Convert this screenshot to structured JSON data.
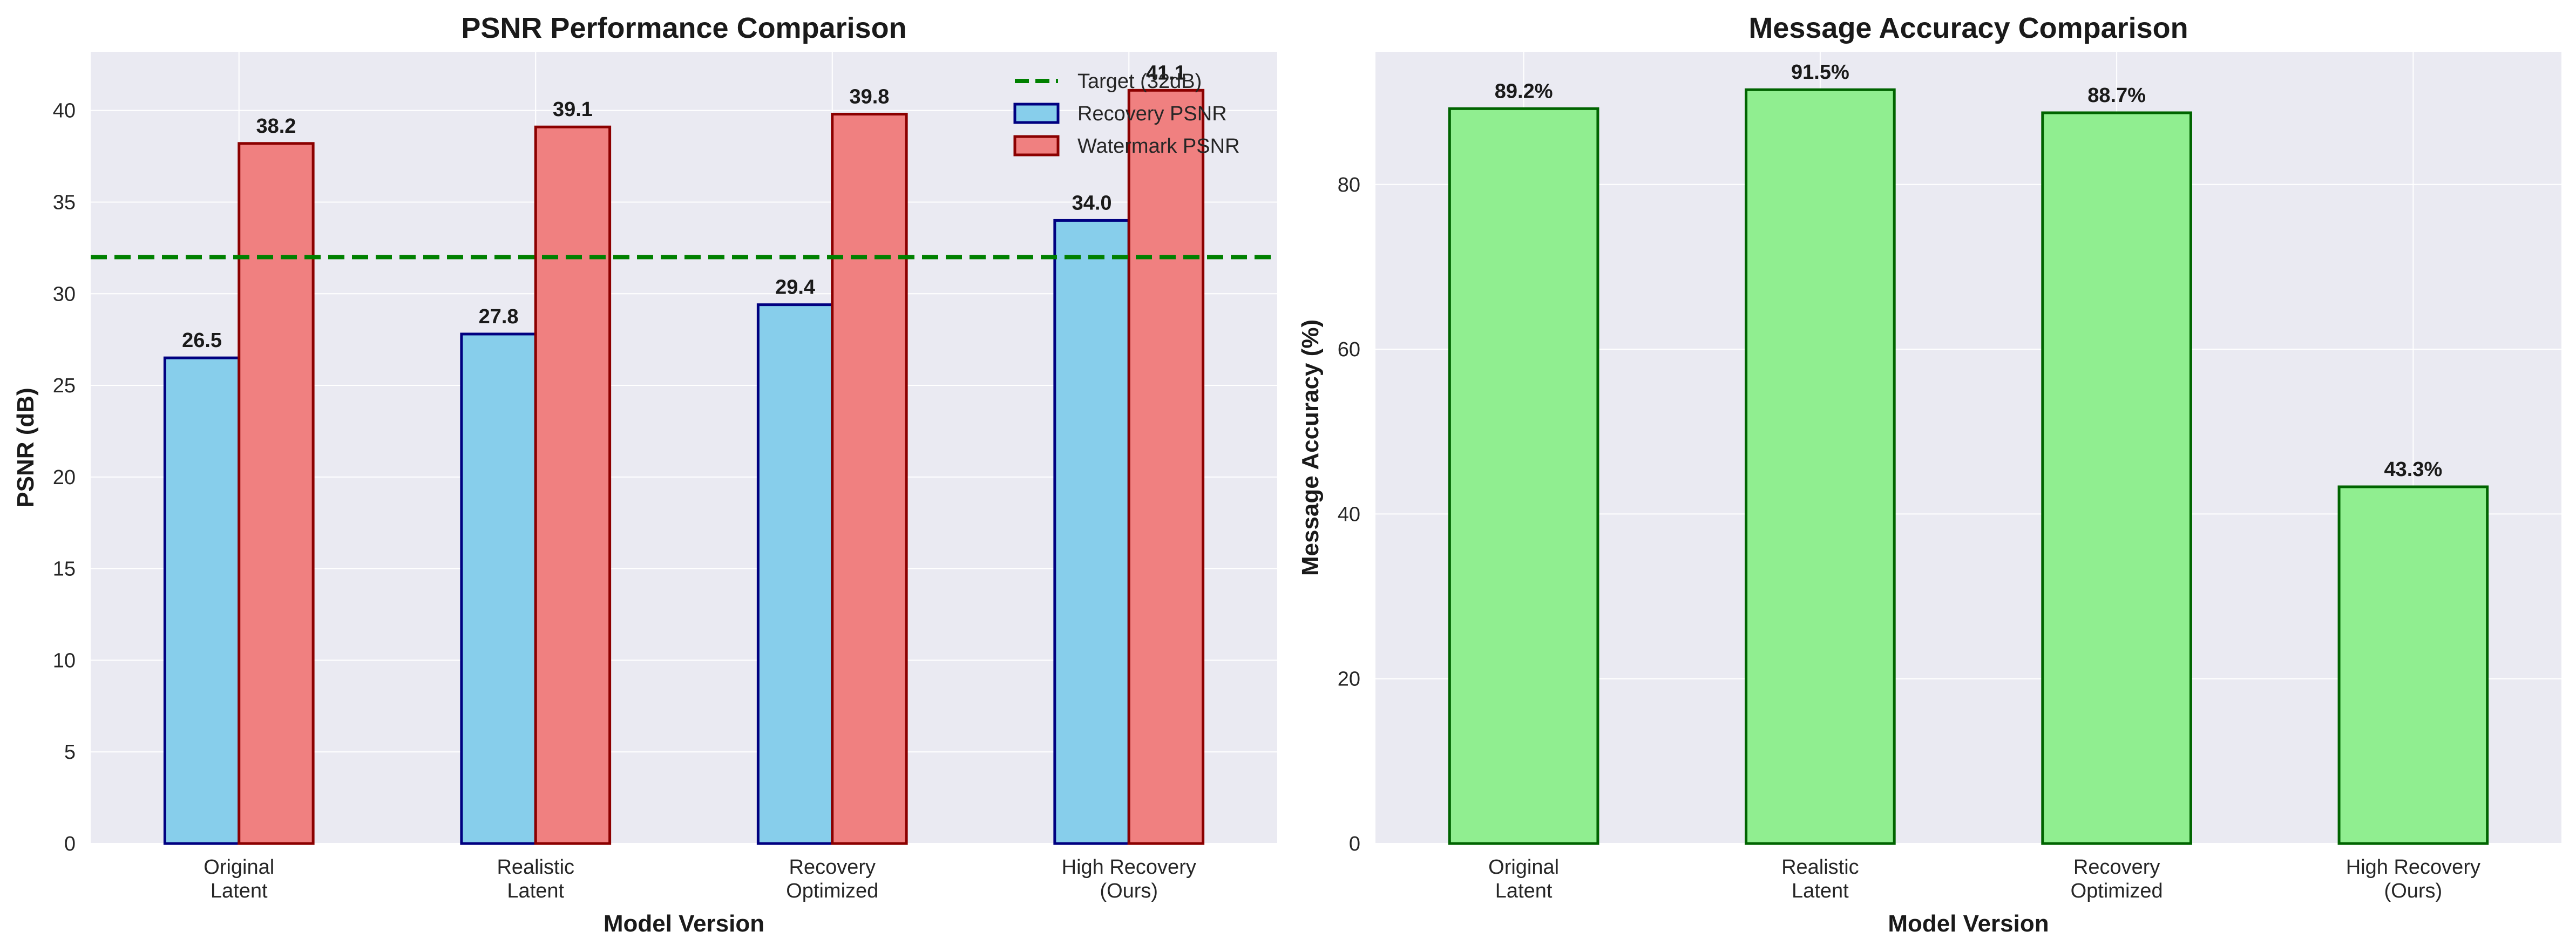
{
  "chart_data": [
    {
      "type": "bar",
      "title": "PSNR Performance Comparison",
      "xlabel": "Model Version",
      "ylabel": "PSNR (dB)",
      "ylim": [
        0,
        43.2
      ],
      "yticks": [
        0,
        5,
        10,
        15,
        20,
        25,
        30,
        35,
        40
      ],
      "grid": true,
      "legend_position": "top-right",
      "categories": [
        [
          "Original",
          "Latent"
        ],
        [
          "Realistic",
          "Latent"
        ],
        [
          "Recovery",
          "Optimized"
        ],
        [
          "High Recovery",
          "(Ours)"
        ]
      ],
      "series": [
        {
          "name": "Recovery PSNR",
          "values": [
            26.5,
            27.8,
            29.4,
            34.0
          ],
          "labels": [
            "26.5",
            "27.8",
            "29.4",
            "34.0"
          ],
          "color": "#87CEEB",
          "edge": "#000080"
        },
        {
          "name": "Watermark PSNR",
          "values": [
            38.2,
            39.1,
            39.8,
            41.1
          ],
          "labels": [
            "38.2",
            "39.1",
            "39.8",
            "41.1"
          ],
          "color": "#F08080",
          "edge": "#8B0000"
        }
      ],
      "reference_line": {
        "name": "Target (32dB)",
        "value": 32,
        "color": "#008000",
        "style": "dashed"
      }
    },
    {
      "type": "bar",
      "title": "Message Accuracy Comparison",
      "xlabel": "Model Version",
      "ylabel": "Message Accuracy (%)",
      "ylim": [
        0,
        96.1
      ],
      "yticks": [
        0,
        20,
        40,
        60,
        80
      ],
      "grid": true,
      "categories": [
        [
          "Original",
          "Latent"
        ],
        [
          "Realistic",
          "Latent"
        ],
        [
          "Recovery",
          "Optimized"
        ],
        [
          "High Recovery",
          "(Ours)"
        ]
      ],
      "series": [
        {
          "values": [
            89.2,
            91.5,
            88.7,
            43.3
          ],
          "labels": [
            "89.2%",
            "91.5%",
            "88.7%",
            "43.3%"
          ],
          "color": "#90EE90",
          "edge": "#006400"
        }
      ]
    }
  ]
}
